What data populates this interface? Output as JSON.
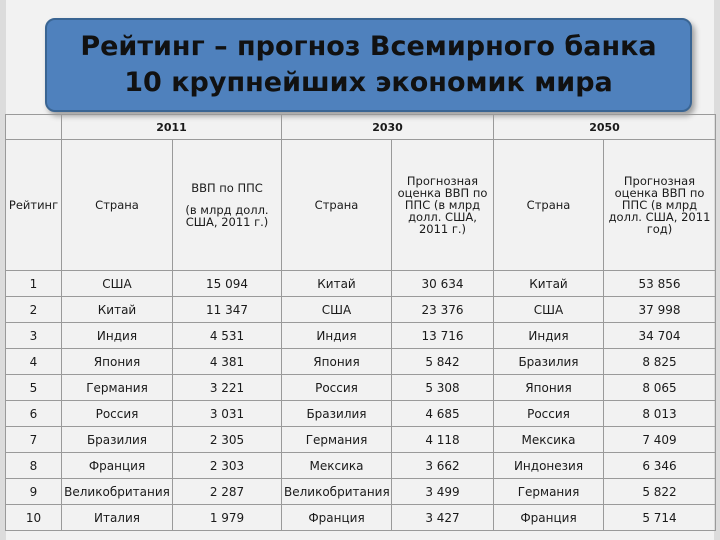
{
  "title": {
    "line1": "Рейтинг – прогноз Всемирного банка",
    "line2": "10 крупнейших экономик мира"
  },
  "years": {
    "y2011": "2011",
    "y2030": "2030",
    "y2050": "2050"
  },
  "headers": {
    "rank": "Рейтинг",
    "country_2011": "Страна",
    "gdp_2011_line1": "ВВП по ППС",
    "gdp_2011_line2": "(в млрд долл. США, 2011 г.)",
    "country_2030": "Страна",
    "gdp_2030": "Прогнозная оценка ВВП по ППС (в млрд долл. США, 2011 г.)",
    "country_2050": "Страна",
    "gdp_2050": "Прогнозная оценка ВВП по ППС (в млрд долл. США, 2011 год)"
  },
  "rows": [
    {
      "rank": "1",
      "c2011": "США",
      "g2011": "15 094",
      "c2030": "Китай",
      "g2030": "30 634",
      "c2050": "Китай",
      "g2050": "53 856"
    },
    {
      "rank": "2",
      "c2011": "Китай",
      "g2011": "11 347",
      "c2030": "США",
      "g2030": "23 376",
      "c2050": "США",
      "g2050": "37 998"
    },
    {
      "rank": "3",
      "c2011": "Индия",
      "g2011": "4 531",
      "c2030": "Индия",
      "g2030": "13 716",
      "c2050": "Индия",
      "g2050": "34 704"
    },
    {
      "rank": "4",
      "c2011": "Япония",
      "g2011": "4 381",
      "c2030": "Япония",
      "g2030": "5 842",
      "c2050": "Бразилия",
      "g2050": "8 825"
    },
    {
      "rank": "5",
      "c2011": "Германия",
      "g2011": "3 221",
      "c2030": "Россия",
      "g2030": "5 308",
      "c2050": "Япония",
      "g2050": "8 065"
    },
    {
      "rank": "6",
      "c2011": "Россия",
      "g2011": "3 031",
      "c2030": "Бразилия",
      "g2030": "4 685",
      "c2050": "Россия",
      "g2050": "8 013"
    },
    {
      "rank": "7",
      "c2011": "Бразилия",
      "g2011": "2 305",
      "c2030": "Германия",
      "g2030": "4 118",
      "c2050": "Мексика",
      "g2050": "7 409"
    },
    {
      "rank": "8",
      "c2011": "Франция",
      "g2011": "2 303",
      "c2030": "Мексика",
      "g2030": "3 662",
      "c2050": "Индонезия",
      "g2050": "6 346"
    },
    {
      "rank": "9",
      "c2011": "Великобритания",
      "g2011": "2 287",
      "c2030": "Великобритания",
      "g2030": "3 499",
      "c2050": "Германия",
      "g2050": "5 822"
    },
    {
      "rank": "10",
      "c2011": "Италия",
      "g2011": "1 979",
      "c2030": "Франция",
      "g2030": "3 427",
      "c2050": "Франция",
      "g2050": "5 714"
    }
  ]
}
